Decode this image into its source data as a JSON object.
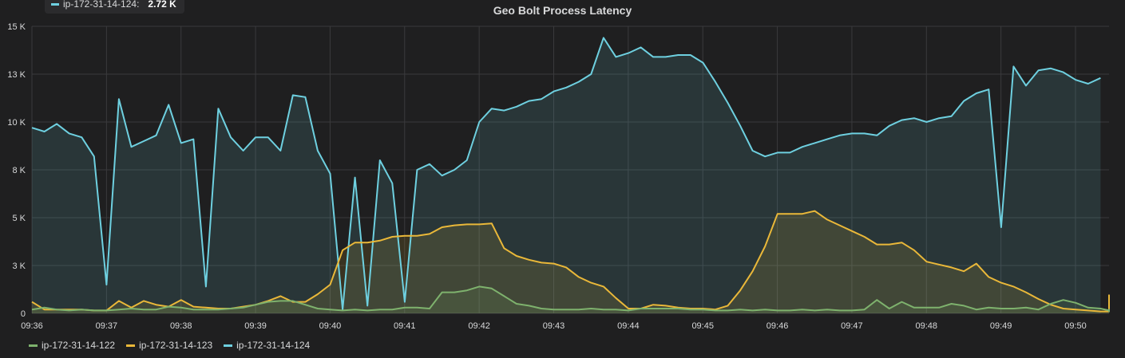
{
  "panel": {
    "title": "Geo Bolt Process Latency"
  },
  "tooltip": {
    "series": "ip-172-31-14-124:",
    "value": "2.72 K",
    "color": "#6ed0e0"
  },
  "chart_data": {
    "type": "area",
    "title": "Geo Bolt Process Latency",
    "xlabel": "",
    "ylabel": "",
    "ylim": [
      0,
      15000
    ],
    "grid": true,
    "legend_position": "bottom-left",
    "y_ticks": [
      {
        "value": 0,
        "label": "0"
      },
      {
        "value": 2500,
        "label": "3 K"
      },
      {
        "value": 5000,
        "label": "5 K"
      },
      {
        "value": 7500,
        "label": "8 K"
      },
      {
        "value": 10000,
        "label": "10 K"
      },
      {
        "value": 12500,
        "label": "13 K"
      },
      {
        "value": 15000,
        "label": "15 K"
      }
    ],
    "x_ticks": [
      "09:36",
      "09:37",
      "09:38",
      "09:39",
      "09:40",
      "09:41",
      "09:42",
      "09:43",
      "09:44",
      "09:45",
      "09:46",
      "09:47",
      "09:48",
      "09:49",
      "09:50"
    ],
    "x_range_minutes": [
      0,
      14.45
    ],
    "x_step_minutes": 0.1667,
    "series": [
      {
        "name": "ip-172-31-14-122",
        "color": "#7eb26d",
        "values": [
          200,
          300,
          200,
          150,
          200,
          150,
          150,
          200,
          250,
          200,
          200,
          350,
          300,
          200,
          200,
          200,
          250,
          300,
          450,
          600,
          650,
          650,
          450,
          250,
          200,
          150,
          200,
          150,
          200,
          200,
          300,
          300,
          250,
          1100,
          1100,
          1200,
          1400,
          1300,
          900,
          500,
          400,
          250,
          200,
          200,
          200,
          250,
          200,
          200,
          150,
          250,
          250,
          250,
          250,
          200,
          200,
          150,
          150,
          200,
          150,
          200,
          150,
          150,
          200,
          150,
          200,
          150,
          150,
          200,
          700,
          250,
          600,
          300,
          300,
          300,
          500,
          400,
          200,
          300,
          250,
          250,
          300,
          200,
          500,
          700,
          550,
          300,
          250,
          150,
          150,
          150,
          100,
          100,
          150,
          200,
          200,
          100
        ]
      },
      {
        "name": "ip-172-31-14-123",
        "color": "#eab839",
        "values": [
          600,
          200,
          200,
          200,
          200,
          150,
          150,
          650,
          300,
          650,
          450,
          350,
          700,
          350,
          300,
          250,
          250,
          350,
          450,
          650,
          900,
          600,
          600,
          1000,
          1500,
          3300,
          3700,
          3700,
          3800,
          4000,
          4050,
          4050,
          4150,
          4500,
          4600,
          4650,
          4650,
          4700,
          3400,
          3000,
          2800,
          2650,
          2600,
          2400,
          1900,
          1600,
          1400,
          800,
          250,
          250,
          450,
          400,
          300,
          250,
          250,
          200,
          400,
          1200,
          2200,
          3500,
          5200,
          5200,
          5200,
          5350,
          4900,
          4600,
          4300,
          4000,
          3600,
          3600,
          3700,
          3300,
          2700,
          2550,
          2400,
          2200,
          2600,
          1900,
          1600,
          1400,
          1100,
          750,
          450,
          250,
          200,
          150,
          100,
          100,
          250,
          300,
          950,
          600,
          100,
          100
        ]
      },
      {
        "name": "ip-172-31-14-124",
        "color": "#6ed0e0",
        "values": [
          9700,
          9500,
          9900,
          9400,
          9200,
          8200,
          1500,
          11200,
          8700,
          9000,
          9300,
          10900,
          8900,
          9100,
          1400,
          10700,
          9200,
          8500,
          9200,
          9200,
          8500,
          11400,
          11300,
          8500,
          7300,
          200,
          7100,
          400,
          8000,
          6800,
          600,
          7500,
          7800,
          7200,
          7500,
          8000,
          10000,
          10700,
          10600,
          10800,
          11100,
          11200,
          11600,
          11800,
          12100,
          12500,
          14400,
          13400,
          13600,
          13900,
          13400,
          13400,
          13500,
          13500,
          13100,
          12100,
          11000,
          9800,
          8500,
          8200,
          8400,
          8400,
          8700,
          8900,
          9100,
          9300,
          9400,
          9400,
          9300,
          9800,
          10100,
          10200,
          10000,
          10200,
          10300,
          11100,
          11500,
          11700,
          4500,
          12900,
          11900,
          12700,
          12800,
          12600,
          12200,
          12000,
          12300
        ]
      }
    ]
  },
  "legend": {
    "items": [
      {
        "label": "ip-172-31-14-122",
        "color": "#7eb26d"
      },
      {
        "label": "ip-172-31-14-123",
        "color": "#eab839"
      },
      {
        "label": "ip-172-31-14-124",
        "color": "#6ed0e0"
      }
    ]
  }
}
